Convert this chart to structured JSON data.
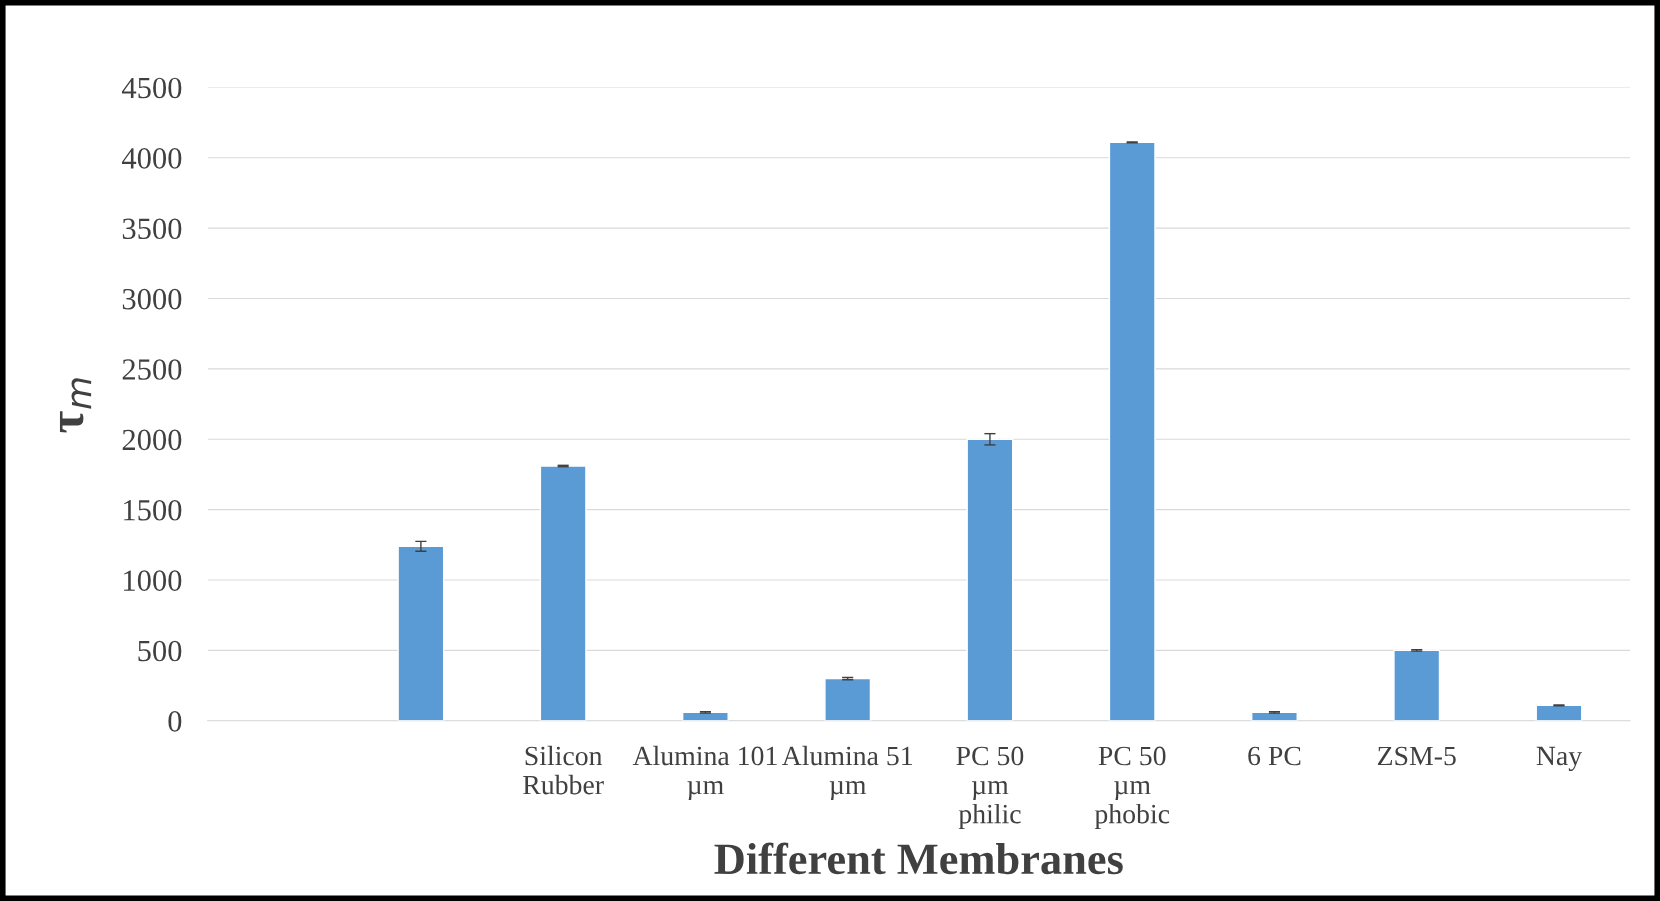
{
  "chart_data": {
    "type": "bar",
    "xlabel": "Different Membranes",
    "ylabel": "τ$_{m}$",
    "categories": [
      null,
      null,
      "Silicon Rubber",
      "Alumina 101 µm",
      "Alumina 51 µm",
      "PC 50 µm philic",
      "PC 50 µm phobic",
      "6 PC",
      "ZSM-5",
      "Nay"
    ],
    "values": [
      null,
      1240,
      1810,
      60,
      300,
      2000,
      4110,
      60,
      500,
      110
    ],
    "errors": [
      null,
      35,
      5,
      5,
      8,
      40,
      3,
      5,
      5,
      3
    ],
    "color": "#5b9bd5",
    "ylim": [
      0,
      4500
    ],
    "yticks": [
      0,
      500,
      1000,
      1500,
      2000,
      2500,
      3000,
      3500,
      4000,
      4500
    ],
    "grid": "y"
  }
}
